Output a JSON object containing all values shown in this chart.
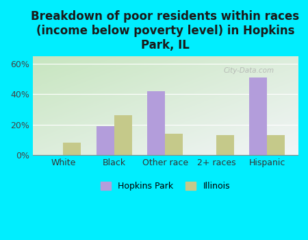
{
  "title": "Breakdown of poor residents within races\n(income below poverty level) in Hopkins\nPark, IL",
  "categories": [
    "White",
    "Black",
    "Other race",
    "2+ races",
    "Hispanic"
  ],
  "hopkins_park": [
    0,
    19,
    42,
    0,
    51
  ],
  "illinois": [
    8,
    26,
    14,
    13,
    13
  ],
  "hopkins_color": "#b39ddb",
  "illinois_color": "#c5c98a",
  "fig_bg": "#00eeff",
  "plot_bg_topleft": "#c8e6c0",
  "plot_bg_bottomright": "#f0f4f0",
  "title_fontsize": 12,
  "ylabel_ticks": [
    "0%",
    "20%",
    "40%",
    "60%"
  ],
  "yticks": [
    0,
    20,
    40,
    60
  ],
  "ylim": [
    0,
    65
  ],
  "bar_width": 0.35,
  "legend_labels": [
    "Hopkins Park",
    "Illinois"
  ],
  "watermark": "City-Data.com"
}
